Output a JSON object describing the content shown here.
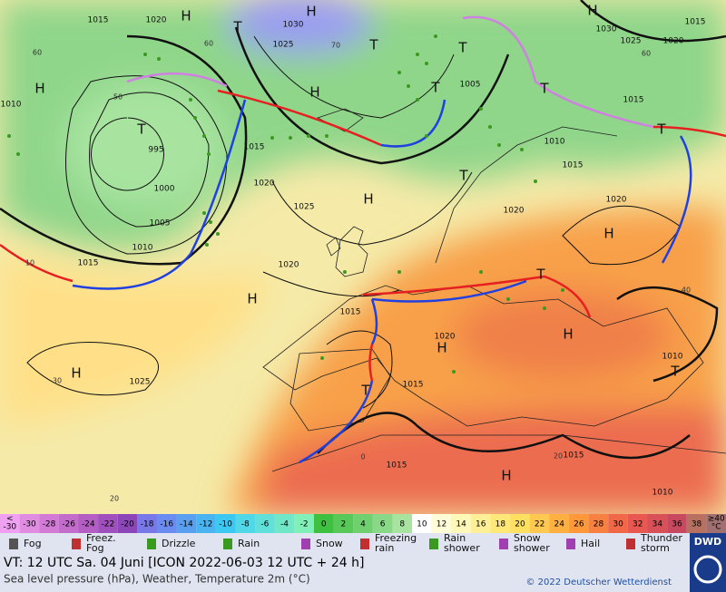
{
  "map": {
    "pressure_labels": [
      "1015",
      "1020",
      "1030",
      "1025",
      "995",
      "1000",
      "1005",
      "1010",
      "1015",
      "1020",
      "1025",
      "1020",
      "1015",
      "1010",
      "1015",
      "1020",
      "1015",
      "1015",
      "1015",
      "1010",
      "1010",
      "1020",
      "1015",
      "1010",
      "1015",
      "1005",
      "1020",
      "1025",
      "1020",
      "1030",
      "1015",
      "1025"
    ],
    "grid_labels": [
      "60",
      "50",
      "60",
      "70",
      "60",
      "40",
      "30",
      "20",
      "10",
      "0",
      "20"
    ],
    "systems": [
      "H",
      "H",
      "H",
      "T",
      "T",
      "T",
      "H",
      "H",
      "T",
      "T",
      "T",
      "T",
      "T",
      "H",
      "H",
      "H",
      "T",
      "H",
      "H",
      "H",
      "T",
      "T",
      "H"
    ]
  },
  "scale": {
    "below": [
      "<",
      "-30"
    ],
    "values": [
      "-30",
      "-28",
      "-26",
      "-24",
      "-22",
      "-20",
      "-18",
      "-16",
      "-14",
      "-12",
      "-10",
      "-8",
      "-6",
      "-4",
      "-2",
      "0",
      "2",
      "4",
      "6",
      "8",
      "10",
      "12",
      "14",
      "16",
      "18",
      "20",
      "22",
      "24",
      "26",
      "28",
      "30",
      "32",
      "34",
      "36",
      "38"
    ],
    "colors": [
      "#e08ce0",
      "#d27ad6",
      "#c46ccc",
      "#b45ec4",
      "#a050bc",
      "#8c46b8",
      "#7878e8",
      "#6a8cf0",
      "#5aa0f0",
      "#4ab4f0",
      "#3cc8f0",
      "#50d8e8",
      "#60e0d8",
      "#70e8c8",
      "#80f0b8",
      "#40c040",
      "#58c858",
      "#70d070",
      "#88d888",
      "#a8e4a0",
      "#ffffff",
      "#fffcd8",
      "#fff8b8",
      "#fff098",
      "#ffe878",
      "#ffe060",
      "#ffc850",
      "#ffb040",
      "#ff9838",
      "#f88040",
      "#f06848",
      "#e85850",
      "#d85058",
      "#c84860",
      "#b87060"
    ],
    "below_color": "#f0a0f0",
    "above": [
      "≥40",
      "°C"
    ],
    "above_color": "#a07070"
  },
  "legend": [
    [
      "Fog"
    ],
    [
      "Freez.",
      "Fog"
    ],
    [
      "Drizzle"
    ],
    [
      "Rain"
    ],
    [
      "Snow"
    ],
    [
      "Freezing",
      "rain"
    ],
    [
      "Rain",
      "shower"
    ],
    [
      "Snow",
      "shower"
    ],
    [
      "Hail"
    ],
    [
      "Thunder",
      "storm"
    ]
  ],
  "footer": {
    "line1": "VT: 12 UTC Sa.   04 Juni [ICON 2022-06-03  12 UTC + 24 h]",
    "line2": "Sea level pressure (hPa), Weather, Temperature 2m (°C)",
    "copyright": "© 2022 Deutscher Wetterdienst",
    "logo": "DWD"
  }
}
